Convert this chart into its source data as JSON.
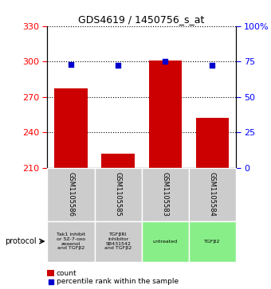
{
  "title": "GDS4619 / 1450756_s_at",
  "samples": [
    "GSM1105586",
    "GSM1105585",
    "GSM1105583",
    "GSM1105584"
  ],
  "count_values": [
    277,
    222,
    301,
    252
  ],
  "percentile_values": [
    73,
    72,
    75,
    72
  ],
  "ylim_left": [
    210,
    330
  ],
  "ylim_right": [
    0,
    100
  ],
  "yticks_left": [
    210,
    240,
    270,
    300,
    330
  ],
  "yticks_right": [
    0,
    25,
    50,
    75,
    100
  ],
  "ytick_labels_right": [
    "0",
    "25",
    "50",
    "75",
    "100%"
  ],
  "bar_color": "#cc0000",
  "dot_color": "#0000cc",
  "protocol_labels": [
    "Tak1 inhibit\nor 5Z-7-oxo\nzeaenol\nand TGFβ2",
    "TGFβRI\ninhibitor\nSB431542\nand TGFβ2",
    "untreated",
    "TGFβ2"
  ],
  "protocol_colors": [
    "#cccccc",
    "#cccccc",
    "#88ee88",
    "#88ee88"
  ],
  "sample_box_color": "#cccccc",
  "legend_count_color": "#cc0000",
  "legend_dot_color": "#0000cc",
  "legend_count_label": "count",
  "legend_dot_label": "percentile rank within the sample",
  "protocol_text": "protocol",
  "bar_bottom": 210,
  "bg_color": "#ffffff"
}
